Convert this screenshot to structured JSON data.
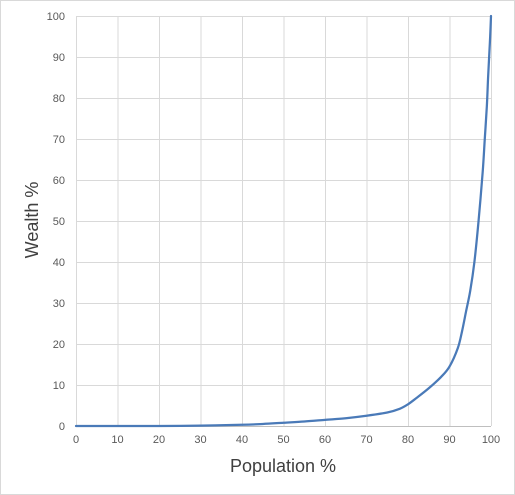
{
  "chart_data": {
    "type": "line",
    "title": "",
    "xlabel": "Population %",
    "ylabel": "Wealth %",
    "xlim": [
      0,
      100
    ],
    "ylim": [
      0,
      100
    ],
    "x_ticks": [
      0,
      10,
      20,
      30,
      40,
      50,
      60,
      70,
      80,
      90,
      100
    ],
    "y_ticks": [
      0,
      10,
      20,
      30,
      40,
      50,
      60,
      70,
      80,
      90,
      100
    ],
    "grid": true,
    "legend": "none",
    "line_color": "#4a7ab8",
    "grid_color": "#d9d9d9",
    "series": [
      {
        "x": [
          0,
          10,
          20,
          30,
          40,
          45,
          50,
          55,
          60,
          65,
          70,
          75,
          78,
          80,
          82,
          85,
          88,
          90,
          92,
          93,
          94,
          95,
          96,
          97,
          98,
          98.5,
          99,
          99.3,
          99.6,
          99.8,
          100
        ],
        "values": [
          0,
          0,
          0,
          0.1,
          0.3,
          0.5,
          0.8,
          1.1,
          1.5,
          1.9,
          2.5,
          3.3,
          4.2,
          5.3,
          6.8,
          9.2,
          12.0,
          14.5,
          19,
          23,
          28,
          33,
          40,
          50,
          62,
          70,
          78,
          85,
          91,
          95,
          100
        ]
      }
    ]
  }
}
